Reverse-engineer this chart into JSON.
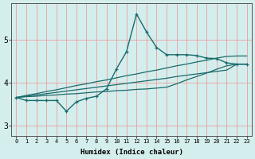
{
  "xlabel": "Humidex (Indice chaleur)",
  "bg_color": "#d4eeed",
  "line_color": "#1a6b6b",
  "grid_color_red": "#e8a0a0",
  "grid_color_h": "#c5e5e3",
  "xlim": [
    -0.5,
    23.5
  ],
  "ylim": [
    2.75,
    5.85
  ],
  "yticks": [
    3,
    4,
    5
  ],
  "xticks": [
    0,
    1,
    2,
    3,
    4,
    5,
    6,
    7,
    8,
    9,
    10,
    11,
    12,
    13,
    14,
    15,
    16,
    17,
    18,
    19,
    20,
    21,
    22,
    23
  ],
  "line_main": [
    3.65,
    3.58,
    3.58,
    3.58,
    3.58,
    3.33,
    3.55,
    3.63,
    3.68,
    3.85,
    4.32,
    4.72,
    5.6,
    5.18,
    4.82,
    4.65,
    4.65,
    4.65,
    4.63,
    4.57,
    4.56,
    4.46,
    4.43,
    4.43
  ],
  "line_straight_high": [
    3.65,
    3.7,
    3.74,
    3.79,
    3.83,
    3.88,
    3.93,
    3.97,
    4.02,
    4.06,
    4.11,
    4.16,
    4.2,
    4.25,
    4.29,
    4.34,
    4.39,
    4.43,
    4.48,
    4.52,
    4.57,
    4.61,
    4.62,
    4.62
  ],
  "line_straight_mid": [
    3.65,
    3.68,
    3.71,
    3.74,
    3.77,
    3.8,
    3.83,
    3.86,
    3.89,
    3.92,
    3.95,
    3.98,
    4.01,
    4.04,
    4.07,
    4.1,
    4.14,
    4.17,
    4.2,
    4.23,
    4.26,
    4.29,
    4.43,
    4.43
  ],
  "line_straight_low": [
    3.65,
    3.67,
    3.68,
    3.7,
    3.71,
    3.73,
    3.74,
    3.76,
    3.78,
    3.79,
    3.81,
    3.82,
    3.84,
    3.85,
    3.87,
    3.89,
    3.97,
    4.06,
    4.14,
    4.22,
    4.31,
    4.39,
    4.43,
    4.43
  ]
}
